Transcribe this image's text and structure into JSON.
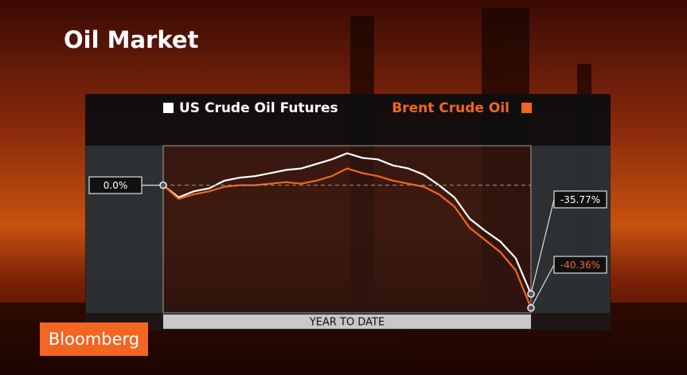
{
  "chart_data": {
    "type": "line",
    "title": "Oil Market",
    "x_label": "YEAR TO DATE",
    "brand": "Bloomberg",
    "ylim": [
      -42,
      13
    ],
    "reference_line": 0,
    "series": [
      {
        "name": "US Crude Oil Futures",
        "color": "#ffffff",
        "values": [
          0,
          -4,
          -2,
          -1,
          1.5,
          2.5,
          3,
          4,
          5,
          5.5,
          7,
          8.5,
          10.5,
          9,
          8.5,
          6.5,
          5.5,
          3.5,
          0,
          -4,
          -11,
          -15,
          -18.5,
          -24,
          -35.77
        ],
        "value_labels": [
          "0.0%",
          null,
          null,
          null,
          null,
          null,
          null,
          null,
          null,
          null,
          null,
          null,
          null,
          null,
          null,
          null,
          null,
          null,
          null,
          null,
          null,
          null,
          null,
          null,
          "-35.77%"
        ]
      },
      {
        "name": "Brent Crude Oil",
        "color": "#f26522",
        "values": [
          0,
          -4.5,
          -3,
          -2,
          -0.5,
          0,
          0,
          0.5,
          1,
          0.5,
          1.5,
          3,
          5.5,
          4,
          3,
          1.5,
          0.5,
          -0.5,
          -3,
          -7,
          -14,
          -18,
          -22,
          -28,
          -40.36
        ],
        "value_labels": [
          null,
          null,
          null,
          null,
          null,
          null,
          null,
          null,
          null,
          null,
          null,
          null,
          null,
          null,
          null,
          null,
          null,
          null,
          null,
          null,
          null,
          null,
          null,
          null,
          "-40.36%"
        ]
      }
    ]
  }
}
